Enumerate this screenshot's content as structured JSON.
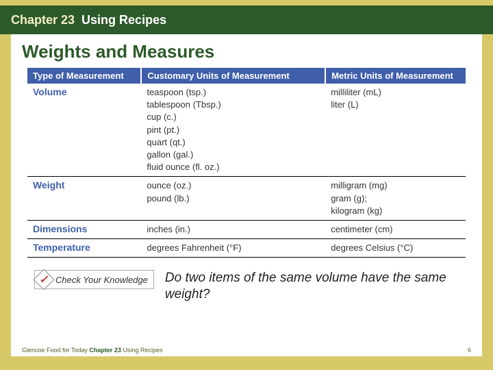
{
  "header": {
    "chapter_num": "Chapter 23",
    "chapter_title": "Using Recipes"
  },
  "section_title": "Weights and Measures",
  "table": {
    "columns": [
      "Type of Measurement",
      "Customary Units of Measurement",
      "Metric Units of Measurement"
    ],
    "rows": [
      {
        "label": "Volume",
        "customary": "teaspoon (tsp.)\ntablespoon (Tbsp.)\ncup (c.)\npint (pt.)\nquart (qt.)\ngallon (gal.)\nfluid ounce (fl. oz.)",
        "metric": "milliliter (mL)\nliter (L)"
      },
      {
        "label": "Weight",
        "customary": "ounce (oz.)\npound (lb.)",
        "metric": "milligram (mg)\ngram (g);\nkilogram (kg)"
      },
      {
        "label": "Dimensions",
        "customary": "inches (in.)",
        "metric": "centimeter (cm)"
      },
      {
        "label": "Temperature",
        "customary": "degrees Fahrenheit (°F)",
        "metric": "degrees Celsius (°C)"
      }
    ]
  },
  "check": {
    "badge_label": "Check Your Knowledge",
    "question": "Do two items of the same volume have the same weight?"
  },
  "footer": {
    "source_prefix": "Glencoe Food for Today ",
    "source_chapter": "Chapter 23 ",
    "source_title": "Using Recipes",
    "page_number": "6"
  },
  "colors": {
    "page_bg": "#d8c968",
    "header_bg": "#2d5a2a",
    "table_header_bg": "#3f5fab",
    "accent_text": "#3f5fab",
    "title_text": "#2d5a2a"
  }
}
